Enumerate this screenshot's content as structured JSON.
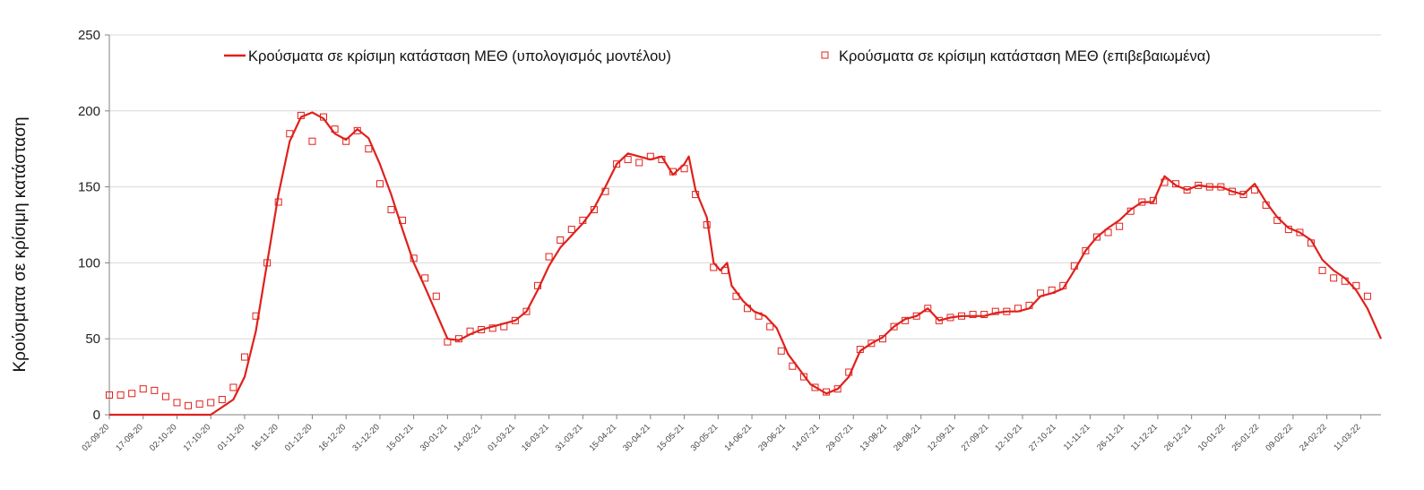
{
  "chart_data": {
    "type": "line",
    "title": "",
    "xlabel": "",
    "ylabel": "Κρούσματα σε κρίσιμη κατάσταση",
    "ylim": [
      0,
      250
    ],
    "yticks": [
      0,
      50,
      100,
      150,
      200,
      250
    ],
    "grid": "horizontal",
    "legend_position": "top",
    "xlim": [
      "2020-09-02",
      "2022-03-20"
    ],
    "x_tick_labels": [
      "02-09-20",
      "17-09-20",
      "02-10-20",
      "17-10-20",
      "01-11-20",
      "16-11-20",
      "01-12-20",
      "16-12-20",
      "31-12-20",
      "15-01-21",
      "30-01-21",
      "14-02-21",
      "01-03-21",
      "16-03-21",
      "31-03-21",
      "15-04-21",
      "30-04-21",
      "15-05-21",
      "30-05-21",
      "14-06-21",
      "29-06-21",
      "14-07-21",
      "29-07-21",
      "13-08-21",
      "28-08-21",
      "12-09-21",
      "27-09-21",
      "12-10-21",
      "27-10-21",
      "11-11-21",
      "26-11-21",
      "11-12-21",
      "26-12-21",
      "10-01-22",
      "25-01-22",
      "09-02-22",
      "24-02-22",
      "11-03-22"
    ],
    "series": [
      {
        "name": "Κρούσματα σε κρίσιμη κατάσταση ΜΕΘ (υπολογισμός μοντέλου)",
        "kind": "line",
        "color": "#e0201b",
        "points": [
          [
            "2020-09-02",
            0
          ],
          [
            "2020-10-17",
            0
          ],
          [
            "2020-10-27",
            10
          ],
          [
            "2020-11-01",
            25
          ],
          [
            "2020-11-06",
            55
          ],
          [
            "2020-11-11",
            100
          ],
          [
            "2020-11-16",
            145
          ],
          [
            "2020-11-21",
            180
          ],
          [
            "2020-11-26",
            196
          ],
          [
            "2020-12-01",
            199
          ],
          [
            "2020-12-06",
            195
          ],
          [
            "2020-12-11",
            185
          ],
          [
            "2020-12-16",
            181
          ],
          [
            "2020-12-21",
            188
          ],
          [
            "2020-12-26",
            182
          ],
          [
            "2020-12-31",
            165
          ],
          [
            "2021-01-05",
            145
          ],
          [
            "2021-01-10",
            122
          ],
          [
            "2021-01-15",
            100
          ],
          [
            "2021-01-20",
            84
          ],
          [
            "2021-01-25",
            67
          ],
          [
            "2021-01-30",
            50
          ],
          [
            "2021-02-04",
            49
          ],
          [
            "2021-02-09",
            53
          ],
          [
            "2021-02-14",
            56
          ],
          [
            "2021-02-19",
            58
          ],
          [
            "2021-02-24",
            60
          ],
          [
            "2021-03-01",
            62
          ],
          [
            "2021-03-06",
            68
          ],
          [
            "2021-03-11",
            82
          ],
          [
            "2021-03-16",
            98
          ],
          [
            "2021-03-21",
            110
          ],
          [
            "2021-03-26",
            118
          ],
          [
            "2021-03-31",
            126
          ],
          [
            "2021-04-05",
            136
          ],
          [
            "2021-04-10",
            150
          ],
          [
            "2021-04-15",
            165
          ],
          [
            "2021-04-20",
            172
          ],
          [
            "2021-04-25",
            170
          ],
          [
            "2021-04-30",
            168
          ],
          [
            "2021-05-05",
            170
          ],
          [
            "2021-05-10",
            158
          ],
          [
            "2021-05-15",
            165
          ],
          [
            "2021-05-17",
            170
          ],
          [
            "2021-05-20",
            148
          ],
          [
            "2021-05-25",
            130
          ],
          [
            "2021-05-28",
            100
          ],
          [
            "2021-05-31",
            95
          ],
          [
            "2021-06-03",
            100
          ],
          [
            "2021-06-05",
            85
          ],
          [
            "2021-06-10",
            75
          ],
          [
            "2021-06-15",
            68
          ],
          [
            "2021-06-20",
            65
          ],
          [
            "2021-06-25",
            57
          ],
          [
            "2021-06-30",
            40
          ],
          [
            "2021-07-05",
            30
          ],
          [
            "2021-07-10",
            20
          ],
          [
            "2021-07-17",
            14
          ],
          [
            "2021-07-22",
            17
          ],
          [
            "2021-07-27",
            25
          ],
          [
            "2021-08-01",
            42
          ],
          [
            "2021-08-06",
            47
          ],
          [
            "2021-08-11",
            51
          ],
          [
            "2021-08-16",
            58
          ],
          [
            "2021-08-21",
            63
          ],
          [
            "2021-08-26",
            65
          ],
          [
            "2021-08-31",
            70
          ],
          [
            "2021-09-05",
            62
          ],
          [
            "2021-09-10",
            64
          ],
          [
            "2021-09-15",
            65
          ],
          [
            "2021-09-20",
            65
          ],
          [
            "2021-09-25",
            65
          ],
          [
            "2021-09-30",
            67
          ],
          [
            "2021-10-05",
            68
          ],
          [
            "2021-10-10",
            68
          ],
          [
            "2021-10-15",
            70
          ],
          [
            "2021-10-20",
            78
          ],
          [
            "2021-10-25",
            80
          ],
          [
            "2021-10-30",
            83
          ],
          [
            "2021-11-04",
            95
          ],
          [
            "2021-11-09",
            108
          ],
          [
            "2021-11-14",
            117
          ],
          [
            "2021-11-19",
            123
          ],
          [
            "2021-11-24",
            128
          ],
          [
            "2021-11-29",
            135
          ],
          [
            "2021-12-04",
            140
          ],
          [
            "2021-12-09",
            140
          ],
          [
            "2021-12-14",
            157
          ],
          [
            "2021-12-19",
            151
          ],
          [
            "2021-12-24",
            148
          ],
          [
            "2021-12-29",
            151
          ],
          [
            "2022-01-03",
            150
          ],
          [
            "2022-01-08",
            150
          ],
          [
            "2022-01-13",
            147
          ],
          [
            "2022-01-18",
            145
          ],
          [
            "2022-01-23",
            152
          ],
          [
            "2022-01-28",
            140
          ],
          [
            "2022-02-02",
            130
          ],
          [
            "2022-02-07",
            123
          ],
          [
            "2022-02-12",
            120
          ],
          [
            "2022-02-17",
            115
          ],
          [
            "2022-02-22",
            102
          ],
          [
            "2022-02-27",
            95
          ],
          [
            "2022-03-04",
            90
          ],
          [
            "2022-03-09",
            82
          ],
          [
            "2022-03-14",
            70
          ],
          [
            "2022-03-20",
            50
          ]
        ]
      },
      {
        "name": "Κρούσματα σε κρίσιμη κατάσταση ΜΕΘ (επιβεβαιωμένα)",
        "kind": "scatter",
        "marker": "open-square",
        "color": "#e0201b",
        "points": [
          [
            "2020-09-02",
            13
          ],
          [
            "2020-09-07",
            13
          ],
          [
            "2020-09-12",
            14
          ],
          [
            "2020-09-17",
            17
          ],
          [
            "2020-09-22",
            16
          ],
          [
            "2020-09-27",
            12
          ],
          [
            "2020-10-02",
            8
          ],
          [
            "2020-10-07",
            6
          ],
          [
            "2020-10-12",
            7
          ],
          [
            "2020-10-17",
            8
          ],
          [
            "2020-10-22",
            10
          ],
          [
            "2020-10-27",
            18
          ],
          [
            "2020-11-01",
            38
          ],
          [
            "2020-11-06",
            65
          ],
          [
            "2020-11-11",
            100
          ],
          [
            "2020-11-16",
            140
          ],
          [
            "2020-11-21",
            185
          ],
          [
            "2020-11-26",
            197
          ],
          [
            "2020-12-01",
            180
          ],
          [
            "2020-12-06",
            196
          ],
          [
            "2020-12-11",
            188
          ],
          [
            "2020-12-16",
            180
          ],
          [
            "2020-12-21",
            187
          ],
          [
            "2020-12-26",
            175
          ],
          [
            "2020-12-31",
            152
          ],
          [
            "2021-01-05",
            135
          ],
          [
            "2021-01-10",
            128
          ],
          [
            "2021-01-15",
            103
          ],
          [
            "2021-01-20",
            90
          ],
          [
            "2021-01-25",
            78
          ],
          [
            "2021-01-30",
            48
          ],
          [
            "2021-02-04",
            50
          ],
          [
            "2021-02-09",
            55
          ],
          [
            "2021-02-14",
            56
          ],
          [
            "2021-02-19",
            57
          ],
          [
            "2021-02-24",
            58
          ],
          [
            "2021-03-01",
            62
          ],
          [
            "2021-03-06",
            68
          ],
          [
            "2021-03-11",
            85
          ],
          [
            "2021-03-16",
            104
          ],
          [
            "2021-03-21",
            115
          ],
          [
            "2021-03-26",
            122
          ],
          [
            "2021-03-31",
            128
          ],
          [
            "2021-04-05",
            135
          ],
          [
            "2021-04-10",
            147
          ],
          [
            "2021-04-15",
            165
          ],
          [
            "2021-04-20",
            168
          ],
          [
            "2021-04-25",
            166
          ],
          [
            "2021-04-30",
            170
          ],
          [
            "2021-05-05",
            168
          ],
          [
            "2021-05-10",
            160
          ],
          [
            "2021-05-15",
            162
          ],
          [
            "2021-05-20",
            145
          ],
          [
            "2021-05-25",
            125
          ],
          [
            "2021-05-28",
            97
          ],
          [
            "2021-06-02",
            95
          ],
          [
            "2021-06-07",
            78
          ],
          [
            "2021-06-12",
            70
          ],
          [
            "2021-06-17",
            65
          ],
          [
            "2021-06-22",
            58
          ],
          [
            "2021-06-27",
            42
          ],
          [
            "2021-07-02",
            32
          ],
          [
            "2021-07-07",
            25
          ],
          [
            "2021-07-12",
            18
          ],
          [
            "2021-07-17",
            15
          ],
          [
            "2021-07-22",
            17
          ],
          [
            "2021-07-27",
            28
          ],
          [
            "2021-08-01",
            43
          ],
          [
            "2021-08-06",
            47
          ],
          [
            "2021-08-11",
            50
          ],
          [
            "2021-08-16",
            58
          ],
          [
            "2021-08-21",
            62
          ],
          [
            "2021-08-26",
            65
          ],
          [
            "2021-08-31",
            70
          ],
          [
            "2021-09-05",
            62
          ],
          [
            "2021-09-10",
            64
          ],
          [
            "2021-09-15",
            65
          ],
          [
            "2021-09-20",
            66
          ],
          [
            "2021-09-25",
            66
          ],
          [
            "2021-09-30",
            68
          ],
          [
            "2021-10-05",
            68
          ],
          [
            "2021-10-10",
            70
          ],
          [
            "2021-10-15",
            72
          ],
          [
            "2021-10-20",
            80
          ],
          [
            "2021-10-25",
            82
          ],
          [
            "2021-10-30",
            85
          ],
          [
            "2021-11-04",
            98
          ],
          [
            "2021-11-09",
            108
          ],
          [
            "2021-11-14",
            117
          ],
          [
            "2021-11-19",
            120
          ],
          [
            "2021-11-24",
            124
          ],
          [
            "2021-11-29",
            134
          ],
          [
            "2021-12-04",
            140
          ],
          [
            "2021-12-09",
            141
          ],
          [
            "2021-12-14",
            153
          ],
          [
            "2021-12-19",
            152
          ],
          [
            "2021-12-24",
            148
          ],
          [
            "2021-12-29",
            151
          ],
          [
            "2022-01-03",
            150
          ],
          [
            "2022-01-08",
            150
          ],
          [
            "2022-01-13",
            147
          ],
          [
            "2022-01-18",
            145
          ],
          [
            "2022-01-23",
            148
          ],
          [
            "2022-01-28",
            138
          ],
          [
            "2022-02-02",
            128
          ],
          [
            "2022-02-07",
            122
          ],
          [
            "2022-02-12",
            120
          ],
          [
            "2022-02-17",
            113
          ],
          [
            "2022-02-22",
            95
          ],
          [
            "2022-02-27",
            90
          ],
          [
            "2022-03-04",
            88
          ],
          [
            "2022-03-09",
            85
          ],
          [
            "2022-03-14",
            78
          ]
        ]
      }
    ]
  }
}
